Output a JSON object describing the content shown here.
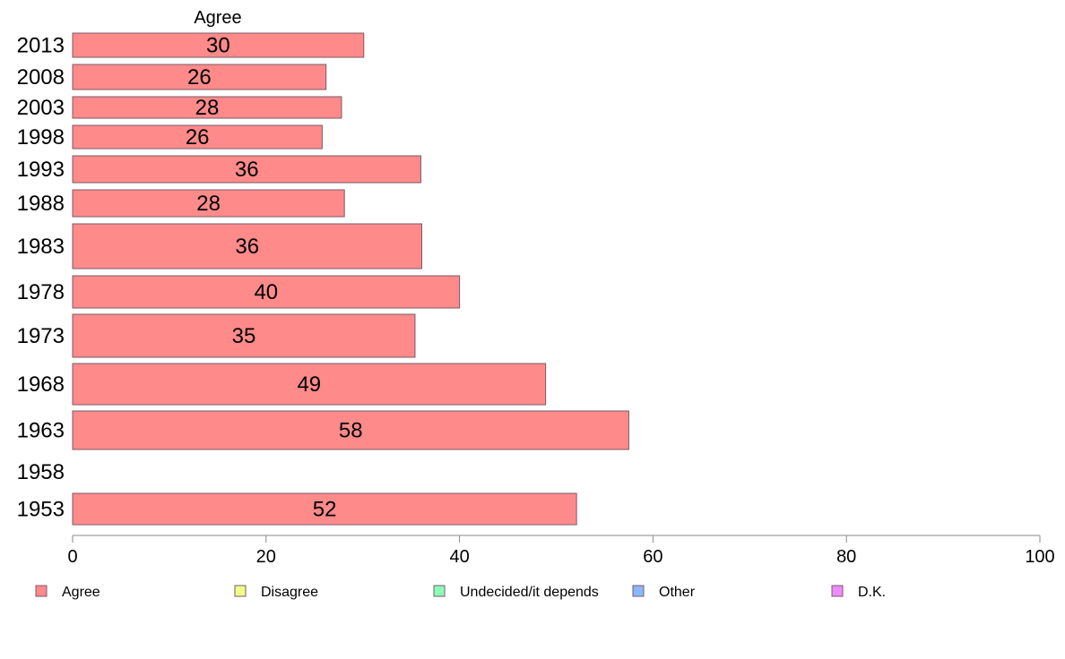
{
  "chart_data": {
    "type": "bar",
    "orientation": "horizontal",
    "panel_header": "Agree",
    "categories": [
      "2013",
      "2008",
      "2003",
      "1998",
      "1993",
      "1988",
      "1983",
      "1978",
      "1973",
      "1968",
      "1963",
      "1958",
      "1953"
    ],
    "series": [
      {
        "name": "Agree",
        "color": "#ff8a8a",
        "values": [
          30.1,
          26.2,
          27.8,
          25.8,
          36.0,
          28.1,
          36.1,
          40.0,
          35.4,
          48.9,
          57.5,
          null,
          52.1
        ],
        "labels": [
          "30",
          "26",
          "28",
          "26",
          "36",
          "28",
          "36",
          "40",
          "35",
          "49",
          "58",
          "",
          "52"
        ]
      }
    ],
    "xlim": [
      0,
      100
    ],
    "xticks": [
      0,
      20,
      40,
      60,
      80,
      100
    ],
    "grid": false,
    "legend": {
      "placement": "bottom",
      "items": [
        {
          "name": "Agree",
          "color": "#ff8a8a"
        },
        {
          "name": "Disagree",
          "color": "#eeff8a"
        },
        {
          "name": "Undecided/it depends",
          "color": "#8affb8"
        },
        {
          "name": "Other",
          "color": "#8ab8ff"
        },
        {
          "name": "D.K.",
          "color": "#ee8aff"
        }
      ]
    }
  }
}
